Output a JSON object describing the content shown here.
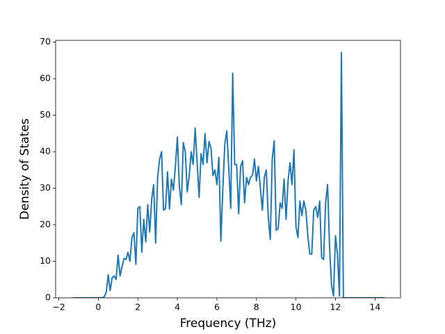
{
  "chart_data": {
    "type": "line",
    "x_label": "Frequency (THz)",
    "y_label": "Density of States",
    "x": [
      -1.3,
      -1.2,
      -1.1,
      -1.0,
      -0.9,
      -0.8,
      -0.7,
      -0.6,
      -0.5,
      -0.4,
      -0.3,
      -0.2,
      -0.1,
      0.0,
      0.1,
      0.2,
      0.3,
      0.4,
      0.5,
      0.6,
      0.7,
      0.8,
      0.9,
      1.0,
      1.1,
      1.2,
      1.3,
      1.4,
      1.5,
      1.6,
      1.7,
      1.8,
      1.9,
      2.0,
      2.1,
      2.2,
      2.3,
      2.4,
      2.5,
      2.6,
      2.7,
      2.8,
      2.9,
      3.0,
      3.1,
      3.2,
      3.3,
      3.4,
      3.5,
      3.6,
      3.7,
      3.8,
      3.9,
      4.0,
      4.1,
      4.2,
      4.3,
      4.4,
      4.5,
      4.6,
      4.7,
      4.8,
      4.9,
      5.0,
      5.1,
      5.2,
      5.3,
      5.4,
      5.5,
      5.6,
      5.7,
      5.8,
      5.9,
      6.0,
      6.1,
      6.2,
      6.3,
      6.4,
      6.5,
      6.6,
      6.7,
      6.8,
      6.9,
      7.0,
      7.1,
      7.2,
      7.3,
      7.4,
      7.5,
      7.6,
      7.7,
      7.8,
      7.9,
      8.0,
      8.1,
      8.2,
      8.3,
      8.4,
      8.5,
      8.6,
      8.7,
      8.8,
      8.9,
      9.0,
      9.1,
      9.2,
      9.3,
      9.4,
      9.5,
      9.6,
      9.7,
      9.8,
      9.9,
      10.0,
      10.1,
      10.2,
      10.3,
      10.4,
      10.5,
      10.6,
      10.7,
      10.8,
      10.9,
      11.0,
      11.1,
      11.2,
      11.3,
      11.4,
      11.5,
      11.6,
      11.7,
      11.8,
      11.9,
      12.0,
      12.1,
      12.2,
      12.3,
      12.4,
      12.5,
      12.6,
      12.7,
      12.8,
      12.9,
      13.0,
      13.1,
      13.2,
      13.3,
      13.4,
      13.5,
      13.6,
      13.7,
      13.8,
      13.9,
      14.0,
      14.1,
      14.2,
      14.3,
      14.4,
      14.5
    ],
    "values": [
      0,
      0,
      0,
      0,
      0,
      0,
      0,
      0,
      0,
      0,
      0,
      0,
      0,
      0,
      0,
      0,
      0.3,
      1.5,
      6.3,
      2,
      5.5,
      6,
      5,
      11.7,
      6,
      8.5,
      10.8,
      10.5,
      12.5,
      10,
      16.5,
      17.8,
      9.2,
      24.5,
      25,
      12.5,
      21.5,
      15.3,
      25.5,
      18,
      27,
      31,
      15,
      33,
      38,
      40,
      24,
      24.5,
      34.5,
      24.3,
      32.5,
      29.5,
      36,
      44,
      30.5,
      25.5,
      42.5,
      40,
      29,
      33.5,
      40,
      36.5,
      46.5,
      37,
      27.5,
      39.5,
      36.5,
      45,
      37,
      42.8,
      41,
      33.5,
      35,
      31,
      38.5,
      15.5,
      30,
      42,
      45.7,
      35.5,
      24.5,
      61.5,
      36.5,
      36.5,
      23,
      36,
      37.5,
      26,
      33,
      31,
      33,
      33.5,
      38,
      32,
      36,
      30,
      24,
      33,
      35,
      22,
      16,
      38,
      43,
      18.5,
      19,
      26,
      24.5,
      32.5,
      21.5,
      32,
      37,
      31,
      40.5,
      19.5,
      16.5,
      26.5,
      22.5,
      26.5,
      24,
      17,
      12,
      12,
      24,
      25,
      22,
      26.5,
      11,
      10.5,
      26,
      31,
      14,
      3.5,
      0.5,
      17,
      12,
      0.5,
      67.2,
      0,
      0,
      0,
      0,
      0,
      0,
      0,
      0,
      0,
      0,
      0,
      0,
      0,
      0,
      0,
      0,
      0,
      0,
      0,
      0,
      0,
      0
    ],
    "color": "#1f77b4",
    "xlim": [
      -2.16,
      15.29
    ],
    "ylim": [
      0,
      70.5
    ],
    "xticks": [
      {
        "value": -2,
        "label": "−2"
      },
      0,
      2,
      4,
      6,
      8,
      10,
      12,
      14
    ],
    "yticks": [
      0,
      10,
      20,
      30,
      40,
      50,
      60,
      70
    ]
  }
}
